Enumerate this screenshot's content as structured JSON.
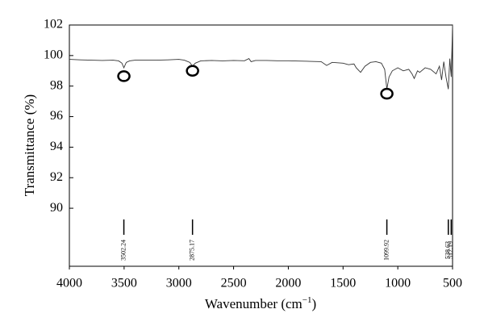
{
  "chart_data": {
    "type": "line",
    "x_label": "Wavenumber (cm",
    "x_label_sup": "−1",
    "x_label_end": ")",
    "y_label": "Transmittance (%)",
    "xlim": [
      4000,
      500
    ],
    "xticks": [
      4000,
      3500,
      3000,
      2500,
      2000,
      1500,
      1000,
      500
    ],
    "ylim": [
      86.2,
      102
    ],
    "yticks": [
      90,
      92,
      94,
      96,
      98,
      100,
      102
    ],
    "x": [
      4000,
      3900,
      3800,
      3700,
      3600,
      3550,
      3520,
      3502.24,
      3480,
      3450,
      3400,
      3300,
      3200,
      3100,
      3000,
      2950,
      2900,
      2875.17,
      2850,
      2800,
      2700,
      2600,
      2500,
      2400,
      2360,
      2340,
      2300,
      2200,
      2100,
      2000,
      1900,
      1800,
      1700,
      1650,
      1600,
      1500,
      1450,
      1400,
      1380,
      1340,
      1300,
      1250,
      1200,
      1150,
      1120,
      1099.92,
      1080,
      1050,
      1000,
      950,
      900,
      870,
      850,
      820,
      800,
      750,
      700,
      650,
      620,
      600,
      580,
      560,
      538.63,
      525,
      512.19,
      505,
      500
    ],
    "series": [
      {
        "color": "#333333",
        "values": [
          99.75,
          99.72,
          99.7,
          99.68,
          99.7,
          99.65,
          99.5,
          99.2,
          99.55,
          99.65,
          99.7,
          99.7,
          99.7,
          99.72,
          99.75,
          99.7,
          99.55,
          99.3,
          99.5,
          99.65,
          99.68,
          99.65,
          99.68,
          99.66,
          99.8,
          99.6,
          99.68,
          99.68,
          99.66,
          99.66,
          99.64,
          99.62,
          99.6,
          99.35,
          99.55,
          99.5,
          99.4,
          99.45,
          99.2,
          98.9,
          99.3,
          99.55,
          99.6,
          99.5,
          99.1,
          97.8,
          98.6,
          99.0,
          99.2,
          99.0,
          99.1,
          98.8,
          98.5,
          99.0,
          98.9,
          99.2,
          99.1,
          98.8,
          99.3,
          98.4,
          99.6,
          98.6,
          97.8,
          99.8,
          98.6,
          100.5,
          102
        ]
      }
    ],
    "circled_peaks": {
      "x": [
        3502.24,
        2875.17,
        1099.92
      ],
      "y": [
        98.65,
        99.0,
        97.5
      ]
    },
    "peak_labels": [
      3502.24,
      2875.17,
      1099.92,
      538.63,
      512.19
    ]
  }
}
